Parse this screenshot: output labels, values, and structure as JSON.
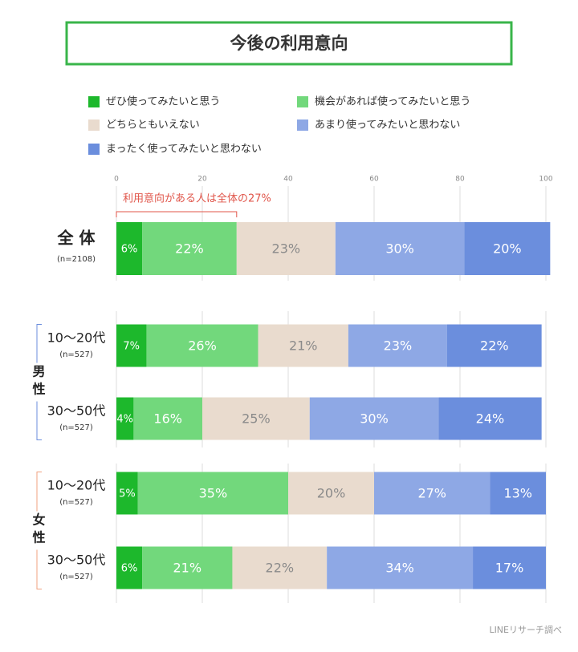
{
  "chart_data": {
    "type": "bar",
    "orientation": "horizontal",
    "stacked": true,
    "title": "今後の利用意向",
    "annotation": "利用意向がある人は全体の27%",
    "source": "LINEリサーチ調べ",
    "categories": [
      "全 体",
      "10〜20代",
      "30〜50代",
      "10〜20代",
      "30〜50代"
    ],
    "sample_sizes": [
      "(n=2108)",
      "(n=527)",
      "(n=527)",
      "(n=527)",
      "(n=527)"
    ],
    "groups": [
      "男性",
      "女性"
    ],
    "xlim": [
      0,
      100
    ],
    "xticks": [
      0,
      20,
      40,
      60,
      80,
      100
    ],
    "grid": true,
    "series": [
      {
        "name": "ぜひ使ってみたいと思う",
        "color": "#1db82c",
        "values": [
          6,
          7,
          4,
          5,
          6
        ],
        "value_labels": [
          "6%",
          "7%",
          "4%",
          "5%",
          "6%"
        ]
      },
      {
        "name": "機会があれば使ってみたいと思う",
        "color": "#72d87c",
        "values": [
          22,
          26,
          16,
          35,
          21
        ],
        "value_labels": [
          "22%",
          "26%",
          "16%",
          "35%",
          "21%"
        ]
      },
      {
        "name": "どちらともいえない",
        "color": "#e9dbce",
        "values": [
          23,
          21,
          25,
          20,
          22
        ],
        "value_labels": [
          "23%",
          "21%",
          "25%",
          "20%",
          "22%"
        ]
      },
      {
        "name": "あまり使ってみたいと思わない",
        "color": "#8ea8e5",
        "values": [
          30,
          23,
          30,
          27,
          34
        ],
        "value_labels": [
          "30%",
          "23%",
          "30%",
          "27%",
          "34%"
        ]
      },
      {
        "name": "まったく使ってみたいと思わない",
        "color": "#6b8edd",
        "values": [
          20,
          22,
          24,
          13,
          17
        ],
        "value_labels": [
          "20%",
          "22%",
          "24%",
          "13%",
          "17%"
        ]
      }
    ]
  }
}
